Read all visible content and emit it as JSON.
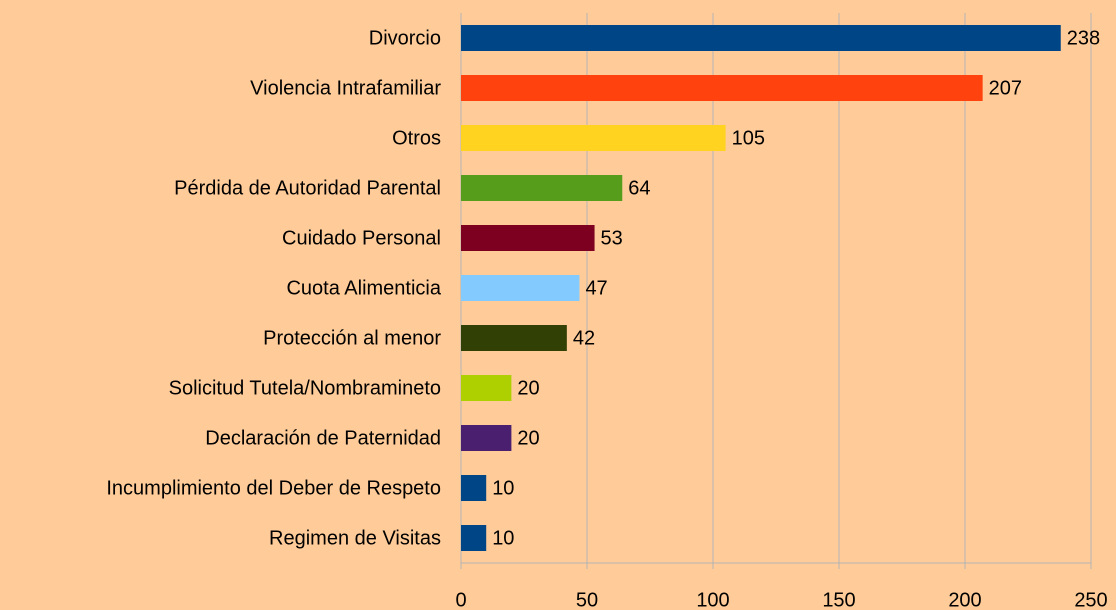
{
  "chart_data": {
    "type": "bar",
    "orientation": "horizontal",
    "categories": [
      "Divorcio",
      "Violencia Intrafamiliar",
      "Otros",
      "Pérdida de Autoridad Parental",
      "Cuidado Personal",
      "Cuota Alimenticia",
      "Protección al menor",
      "Solicitud Tutela/Nombramineto",
      "Declaración de Paternidad",
      "Incumplimiento del Deber de Respeto",
      "Regimen de Visitas"
    ],
    "values": [
      238,
      207,
      105,
      64,
      53,
      47,
      42,
      20,
      20,
      10,
      10
    ],
    "colors": [
      "#004586",
      "#ff420e",
      "#ffd320",
      "#579d1c",
      "#7e0021",
      "#83caff",
      "#314004",
      "#aecf00",
      "#4b1f6f",
      "#004586",
      "#004586"
    ],
    "xlim": [
      0,
      250
    ],
    "xticks": [
      0,
      50,
      100,
      150,
      200,
      250
    ],
    "grid": true
  }
}
